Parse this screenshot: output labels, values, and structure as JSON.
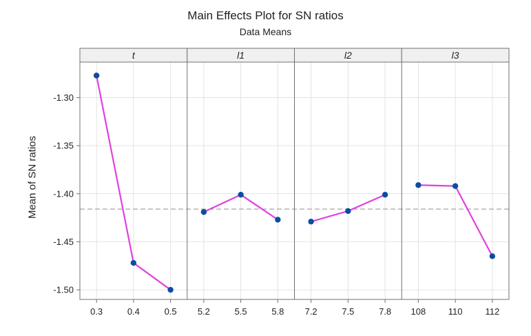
{
  "chart_data": {
    "type": "line",
    "title": "Main Effects Plot for SN ratios",
    "subtitle": "Data Means",
    "ylabel": "Mean of SN ratios",
    "ylim": [
      -1.51,
      -1.263
    ],
    "yticks": [
      "-1.30",
      "-1.35",
      "-1.40",
      "-1.45",
      "-1.50"
    ],
    "reference_line": -1.416,
    "grid": true,
    "line_color": "#E040E0",
    "marker_color": "#0A4EA0",
    "panels": [
      {
        "factor": "t",
        "categories": [
          "0.3",
          "0.4",
          "0.5"
        ],
        "values": [
          -1.277,
          -1.472,
          -1.5
        ]
      },
      {
        "factor": "l1",
        "categories": [
          "5.2",
          "5.5",
          "5.8"
        ],
        "values": [
          -1.419,
          -1.401,
          -1.427
        ]
      },
      {
        "factor": "l2",
        "categories": [
          "7.2",
          "7.5",
          "7.8"
        ],
        "values": [
          -1.429,
          -1.418,
          -1.401
        ]
      },
      {
        "factor": "l3",
        "categories": [
          "108",
          "110",
          "112"
        ],
        "values": [
          -1.391,
          -1.392,
          -1.465
        ]
      }
    ]
  }
}
